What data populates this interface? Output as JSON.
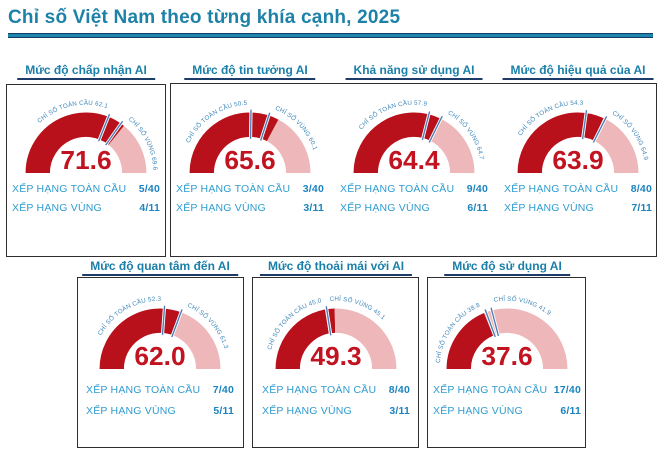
{
  "page_title": "Chỉ số Việt Nam theo từng khía cạnh, 2025",
  "labels": {
    "global_index": "CHỈ SỐ TOÀN CẦU",
    "region_index": "CHỈ SỐ VÙNG",
    "global_rank": "XẾP HẠNG TOÀN CẦU",
    "region_rank": "XẾP HẠNG VÙNG"
  },
  "colors": {
    "title_teal": "#1e81a8",
    "card_title_teal": "#1a7fa9",
    "gauge_fill": "#b9111b",
    "gauge_rest": "#eeb8ba",
    "value_red": "#c21320",
    "marker_blue": "#4d7cb5",
    "arc_label_blue": "#3d86ba",
    "rank_label_blue": "#2f9ccf",
    "rank_value_blue": "#1b84c0",
    "box_border": "#2e2e2e",
    "rule_navy": "#163a6a"
  },
  "chart_data": {
    "type": "gauge",
    "range": [
      0,
      100
    ],
    "title": "Chỉ số Việt Nam theo từng khía cạnh, 2025",
    "gauges": [
      {
        "title": "Mức độ chấp nhận AI",
        "value": 71.6,
        "global_index": 62.1,
        "region_index": 69.6,
        "global_rank": "5/40",
        "region_rank": "4/11"
      },
      {
        "title": "Mức độ tin tưởng AI",
        "value": 65.6,
        "global_index": 50.5,
        "region_index": 60.1,
        "global_rank": "3/40",
        "region_rank": "3/11"
      },
      {
        "title": "Khả năng sử dụng AI",
        "value": 64.4,
        "global_index": 57.9,
        "region_index": 64.7,
        "global_rank": "9/40",
        "region_rank": "6/11"
      },
      {
        "title": "Mức độ hiệu quả của AI",
        "value": 63.9,
        "global_index": 54.3,
        "region_index": 64.9,
        "global_rank": "8/40",
        "region_rank": "7/11"
      },
      {
        "title": "Mức độ quan tâm đến AI",
        "value": 62.0,
        "global_index": 52.3,
        "region_index": 61.3,
        "global_rank": "7/40",
        "region_rank": "5/11"
      },
      {
        "title": "Mức độ thoải mái với AI",
        "value": 49.3,
        "global_index": 45.0,
        "region_index": 45.1,
        "global_rank": "8/40",
        "region_rank": "3/11"
      },
      {
        "title": "Mức độ sử dụng AI",
        "value": 37.6,
        "global_index": 38.8,
        "region_index": 41.9,
        "global_rank": "17/40",
        "region_rank": "6/11"
      }
    ]
  }
}
